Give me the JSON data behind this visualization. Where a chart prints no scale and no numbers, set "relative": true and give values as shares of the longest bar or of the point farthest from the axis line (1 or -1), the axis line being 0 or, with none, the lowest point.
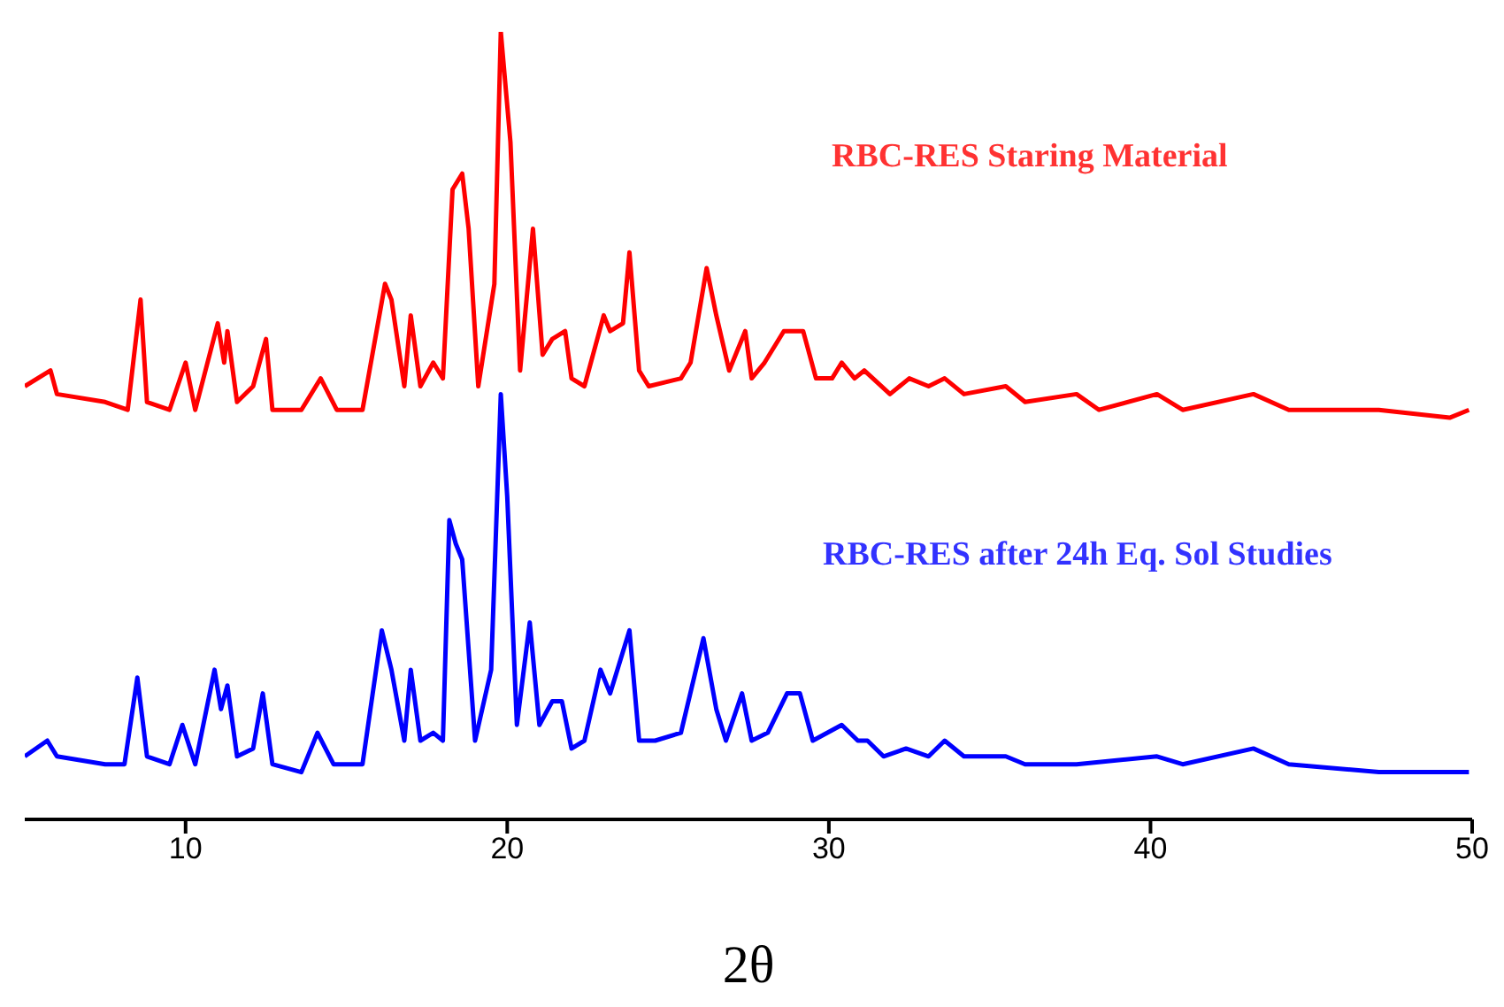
{
  "chart_data": {
    "type": "line",
    "xlabel": "2θ",
    "relative": true,
    "xlim": [
      5,
      50
    ],
    "xticks": [
      10,
      20,
      30,
      40,
      50
    ],
    "marker": "none",
    "line_style": "solid",
    "series": [
      {
        "name": "RBC-RES Staring Material",
        "color": "#ff0000",
        "x": [
          5.0,
          5.8,
          6.0,
          7.5,
          8.2,
          8.6,
          8.8,
          9.5,
          10.0,
          10.3,
          11.0,
          11.2,
          11.3,
          11.6,
          12.1,
          12.5,
          12.7,
          13.6,
          14.2,
          14.7,
          15.5,
          16.2,
          16.4,
          16.8,
          17.0,
          17.3,
          17.7,
          18.0,
          18.3,
          18.6,
          18.8,
          19.1,
          19.6,
          19.8,
          20.1,
          20.4,
          20.8,
          21.1,
          21.4,
          21.8,
          22.0,
          22.4,
          23.0,
          23.2,
          23.6,
          23.8,
          24.1,
          24.4,
          25.4,
          25.7,
          26.2,
          26.5,
          26.9,
          27.4,
          27.6,
          28.0,
          28.6,
          29.2,
          29.6,
          30.1,
          30.4,
          30.8,
          31.1,
          31.9,
          32.5,
          33.1,
          33.6,
          34.2,
          35.5,
          36.1,
          37.7,
          38.4,
          40.2,
          41.0,
          43.2,
          44.3,
          47.1,
          49.3,
          49.9
        ],
        "values": [
          0.55,
          0.57,
          0.54,
          0.53,
          0.52,
          0.66,
          0.53,
          0.52,
          0.58,
          0.52,
          0.63,
          0.58,
          0.62,
          0.53,
          0.55,
          0.61,
          0.52,
          0.52,
          0.56,
          0.52,
          0.52,
          0.68,
          0.66,
          0.55,
          0.64,
          0.55,
          0.58,
          0.56,
          0.8,
          0.82,
          0.75,
          0.55,
          0.68,
          1.0,
          0.86,
          0.57,
          0.75,
          0.59,
          0.61,
          0.62,
          0.56,
          0.55,
          0.64,
          0.62,
          0.63,
          0.72,
          0.57,
          0.55,
          0.56,
          0.58,
          0.7,
          0.64,
          0.57,
          0.62,
          0.56,
          0.58,
          0.62,
          0.62,
          0.56,
          0.56,
          0.58,
          0.56,
          0.57,
          0.54,
          0.56,
          0.55,
          0.56,
          0.54,
          0.55,
          0.53,
          0.54,
          0.52,
          0.54,
          0.52,
          0.54,
          0.52,
          0.52,
          0.51,
          0.52
        ]
      },
      {
        "name": "RBC-RES after 24h Eq. Sol Studies",
        "color": "#0000ff",
        "x": [
          5.0,
          5.7,
          6.0,
          7.5,
          8.1,
          8.5,
          8.8,
          9.5,
          9.9,
          10.3,
          10.9,
          11.1,
          11.3,
          11.6,
          12.1,
          12.4,
          12.7,
          13.6,
          14.1,
          14.6,
          15.5,
          16.1,
          16.4,
          16.8,
          17.0,
          17.3,
          17.7,
          18.0,
          18.2,
          18.4,
          18.6,
          19.0,
          19.5,
          19.8,
          20.0,
          20.3,
          20.7,
          21.0,
          21.4,
          21.7,
          22.0,
          22.4,
          22.9,
          23.2,
          23.8,
          24.1,
          24.6,
          25.4,
          26.1,
          26.5,
          26.8,
          27.3,
          27.6,
          28.1,
          28.7,
          29.1,
          29.5,
          30.4,
          30.9,
          31.2,
          31.7,
          32.4,
          33.1,
          33.6,
          34.2,
          35.5,
          36.1,
          37.7,
          40.2,
          41.0,
          43.2,
          44.3,
          47.1,
          49.9
        ],
        "values": [
          0.08,
          0.1,
          0.08,
          0.07,
          0.07,
          0.18,
          0.08,
          0.07,
          0.12,
          0.07,
          0.19,
          0.14,
          0.17,
          0.08,
          0.09,
          0.16,
          0.07,
          0.06,
          0.11,
          0.07,
          0.07,
          0.24,
          0.19,
          0.1,
          0.19,
          0.1,
          0.11,
          0.1,
          0.38,
          0.35,
          0.33,
          0.1,
          0.19,
          0.54,
          0.41,
          0.12,
          0.25,
          0.12,
          0.15,
          0.15,
          0.09,
          0.1,
          0.19,
          0.16,
          0.24,
          0.1,
          0.1,
          0.11,
          0.23,
          0.14,
          0.1,
          0.16,
          0.1,
          0.11,
          0.16,
          0.16,
          0.1,
          0.12,
          0.1,
          0.1,
          0.08,
          0.09,
          0.08,
          0.1,
          0.08,
          0.08,
          0.07,
          0.07,
          0.08,
          0.07,
          0.09,
          0.07,
          0.06,
          0.06
        ]
      }
    ]
  }
}
